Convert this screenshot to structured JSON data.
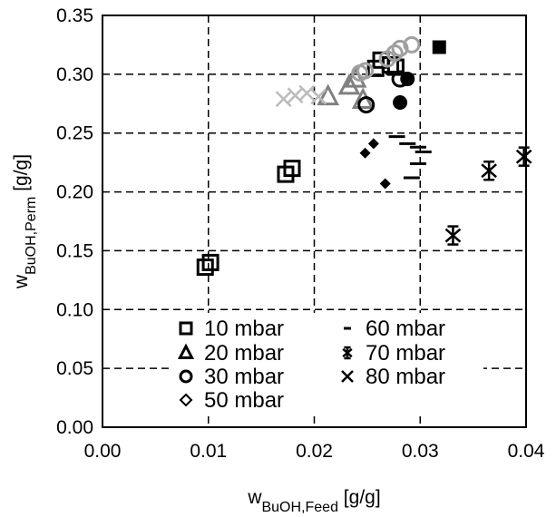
{
  "chart_data": {
    "type": "scatter",
    "xlabel": {
      "main": "w",
      "sub": "BuOH,Feed",
      "unit": " [g/g]"
    },
    "ylabel": {
      "main": "w",
      "sub": "BuOH,Perm",
      "unit": " [g/g]"
    },
    "xlim": [
      0,
      0.04
    ],
    "ylim": [
      0,
      0.35
    ],
    "xticks": [
      "0.00",
      "0.01",
      "0.02",
      "0.03",
      "0.04"
    ],
    "yticks": [
      "0.00",
      "0.05",
      "0.10",
      "0.15",
      "0.20",
      "0.25",
      "0.30",
      "0.35"
    ],
    "grid": true,
    "legend_placement": "bottom-center",
    "series": [
      {
        "name": "10 mbar",
        "marker": "square-open",
        "color": "#000000",
        "points": [
          [
            0.0097,
            0.136
          ],
          [
            0.0102,
            0.14
          ],
          [
            0.0173,
            0.215
          ],
          [
            0.0179,
            0.22
          ],
          [
            0.0258,
            0.305
          ],
          [
            0.0263,
            0.312
          ],
          [
            0.0272,
            0.308
          ],
          [
            0.0277,
            0.306
          ]
        ]
      },
      {
        "name": "10 mbar",
        "marker": "square-filled",
        "color": "#000000",
        "points": [
          [
            0.0318,
            0.323
          ]
        ]
      },
      {
        "name": "20 mbar",
        "marker": "triangle-open",
        "color": "#808080",
        "points": [
          [
            0.0213,
            0.281
          ],
          [
            0.0233,
            0.29
          ],
          [
            0.0239,
            0.296
          ],
          [
            0.0246,
            0.278
          ]
        ]
      },
      {
        "name": "30 mbar",
        "marker": "circle-open",
        "color": "#000000",
        "points": [
          [
            0.0249,
            0.274
          ],
          [
            0.0281,
            0.296
          ]
        ]
      },
      {
        "name": "30 mbar",
        "marker": "circle-open",
        "color": "#a0a0a0",
        "points": [
          [
            0.0243,
            0.301
          ],
          [
            0.0248,
            0.303
          ],
          [
            0.0269,
            0.313
          ],
          [
            0.0276,
            0.318
          ],
          [
            0.0281,
            0.322
          ],
          [
            0.0292,
            0.325
          ]
        ]
      },
      {
        "name": "30 mbar",
        "marker": "circle-filled",
        "color": "#000000",
        "points": [
          [
            0.0281,
            0.276
          ],
          [
            0.0288,
            0.296
          ]
        ]
      },
      {
        "name": "50 mbar",
        "marker": "diamond-filled",
        "color": "#000000",
        "points": [
          [
            0.0248,
            0.233
          ],
          [
            0.0256,
            0.241
          ],
          [
            0.0267,
            0.207
          ]
        ]
      },
      {
        "name": "60 mbar",
        "marker": "dash",
        "color": "#000000",
        "points": [
          [
            0.0278,
            0.247
          ],
          [
            0.0288,
            0.241
          ],
          [
            0.0298,
            0.238
          ],
          [
            0.0303,
            0.234
          ],
          [
            0.0298,
            0.224
          ],
          [
            0.0292,
            0.212
          ]
        ]
      },
      {
        "name": "70 mbar",
        "marker": "asterisk",
        "color": "#000000",
        "points": [
          [
            0.0331,
            0.163
          ],
          [
            0.0365,
            0.218
          ],
          [
            0.0398,
            0.23
          ]
        ]
      },
      {
        "name": "80 mbar",
        "marker": "cross",
        "color": "#bbbbbb",
        "points": [
          [
            0.0171,
            0.279
          ],
          [
            0.0182,
            0.282
          ],
          [
            0.0193,
            0.284
          ],
          [
            0.0204,
            0.281
          ]
        ]
      }
    ],
    "legend": [
      {
        "label": "10 mbar",
        "marker": "square-open"
      },
      {
        "label": "20 mbar",
        "marker": "triangle-open"
      },
      {
        "label": "30 mbar",
        "marker": "circle-open"
      },
      {
        "label": "50 mbar",
        "marker": "diamond-open"
      },
      {
        "label": "60 mbar",
        "marker": "dash"
      },
      {
        "label": "70 mbar",
        "marker": "asterisk"
      },
      {
        "label": "80 mbar",
        "marker": "cross"
      }
    ]
  }
}
